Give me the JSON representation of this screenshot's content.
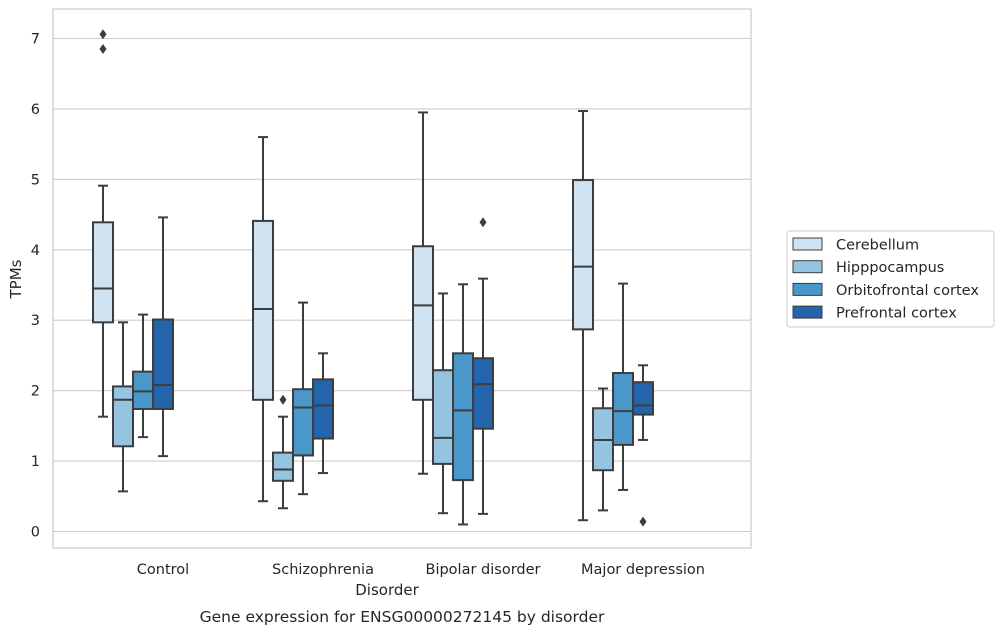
{
  "chart_data": {
    "type": "box",
    "caption": "Gene expression for ENSG00000272145 by disorder",
    "xlabel": "Disorder",
    "ylabel": "TPMs",
    "ylim": [
      -0.22,
      7.4
    ],
    "yticks": [
      0,
      1,
      2,
      3,
      4,
      5,
      6,
      7
    ],
    "grid": true,
    "legend_position": "right",
    "categories": [
      "Control",
      "Schizophrenia",
      "Bipolar disorder",
      "Major depression"
    ],
    "series": [
      {
        "name": "Cerebellum",
        "color": "#d0e1f2",
        "boxes": [
          {
            "whislo": 1.63,
            "q1": 2.97,
            "med": 3.45,
            "q3": 4.39,
            "whishi": 4.91,
            "fliers": [
              6.85,
              7.06
            ]
          },
          {
            "whislo": 0.43,
            "q1": 1.87,
            "med": 3.16,
            "q3": 4.41,
            "whishi": 5.6,
            "fliers": []
          },
          {
            "whislo": 0.82,
            "q1": 1.87,
            "med": 3.21,
            "q3": 4.05,
            "whishi": 5.95,
            "fliers": []
          },
          {
            "whislo": 0.16,
            "q1": 2.87,
            "med": 3.76,
            "q3": 4.99,
            "whishi": 5.97,
            "fliers": []
          }
        ]
      },
      {
        "name": "Hipppocampus",
        "color": "#94c4df",
        "boxes": [
          {
            "whislo": 0.57,
            "q1": 1.21,
            "med": 1.87,
            "q3": 2.06,
            "whishi": 2.97,
            "fliers": []
          },
          {
            "whislo": 0.33,
            "q1": 0.72,
            "med": 0.88,
            "q3": 1.12,
            "whishi": 1.63,
            "fliers": [
              1.87
            ]
          },
          {
            "whislo": 0.26,
            "q1": 0.96,
            "med": 1.33,
            "q3": 2.29,
            "whishi": 3.38,
            "fliers": []
          },
          {
            "whislo": 0.3,
            "q1": 0.87,
            "med": 1.3,
            "q3": 1.75,
            "whishi": 2.03,
            "fliers": []
          }
        ]
      },
      {
        "name": "Orbitofrontal cortex",
        "color": "#4a98c9",
        "boxes": [
          {
            "whislo": 1.34,
            "q1": 1.74,
            "med": 1.99,
            "q3": 2.27,
            "whishi": 3.08,
            "fliers": []
          },
          {
            "whislo": 0.53,
            "q1": 1.08,
            "med": 1.76,
            "q3": 2.02,
            "whishi": 3.25,
            "fliers": []
          },
          {
            "whislo": 0.1,
            "q1": 0.73,
            "med": 1.72,
            "q3": 2.53,
            "whishi": 3.51,
            "fliers": []
          },
          {
            "whislo": 0.59,
            "q1": 1.23,
            "med": 1.71,
            "q3": 2.25,
            "whishi": 3.52,
            "fliers": []
          }
        ]
      },
      {
        "name": "Prefrontal cortex",
        "color": "#2464ab",
        "boxes": [
          {
            "whislo": 1.07,
            "q1": 1.74,
            "med": 2.08,
            "q3": 3.01,
            "whishi": 4.46,
            "fliers": []
          },
          {
            "whislo": 0.83,
            "q1": 1.32,
            "med": 1.79,
            "q3": 2.16,
            "whishi": 2.53,
            "fliers": []
          },
          {
            "whislo": 0.25,
            "q1": 1.46,
            "med": 2.09,
            "q3": 2.46,
            "whishi": 3.59,
            "fliers": [
              4.39
            ]
          },
          {
            "whislo": 1.3,
            "q1": 1.66,
            "med": 1.79,
            "q3": 2.12,
            "whishi": 2.36,
            "fliers": [
              0.14
            ]
          }
        ]
      }
    ]
  }
}
